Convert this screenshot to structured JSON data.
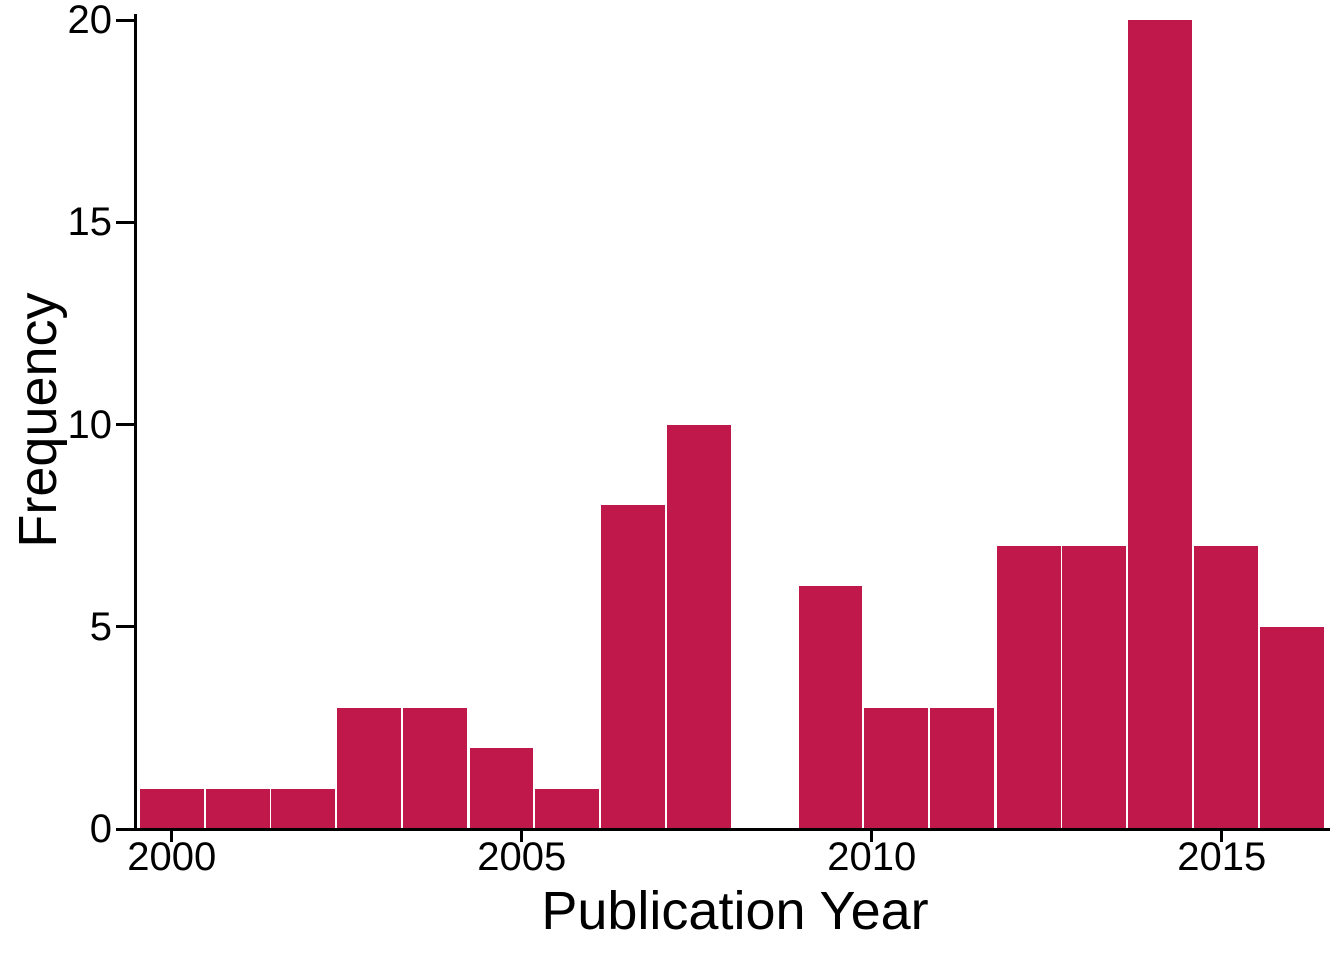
{
  "chart_data": {
    "type": "histogram",
    "title": "",
    "xlabel": "Publication Year",
    "ylabel": "Frequency",
    "x_tick_values": [
      2000,
      2005,
      2010,
      2015
    ],
    "y_tick_values": [
      0,
      5,
      10,
      15,
      20
    ],
    "xlim": [
      1999.5,
      2016.75
    ],
    "ylim": [
      0,
      20
    ],
    "grid": false,
    "legend": false,
    "background_color": "#FFFFFF",
    "axis_color": "#000000",
    "text_color": "#000000",
    "bar_fill_color": "#C1184C",
    "bar_stroke_color": "#FFFFFF",
    "bin_width_years": 0.9412,
    "total_count": 88,
    "bins": [
      {
        "x": 2000.0,
        "count": 1
      },
      {
        "x": 2000.94,
        "count": 1
      },
      {
        "x": 2001.88,
        "count": 1
      },
      {
        "x": 2002.82,
        "count": 3
      },
      {
        "x": 2003.76,
        "count": 3
      },
      {
        "x": 2004.71,
        "count": 2
      },
      {
        "x": 2005.65,
        "count": 1
      },
      {
        "x": 2006.59,
        "count": 8
      },
      {
        "x": 2007.53,
        "count": 10
      },
      {
        "x": 2008.47,
        "count": 0
      },
      {
        "x": 2009.41,
        "count": 6
      },
      {
        "x": 2010.35,
        "count": 3
      },
      {
        "x": 2011.29,
        "count": 3
      },
      {
        "x": 2012.24,
        "count": 7
      },
      {
        "x": 2013.18,
        "count": 7
      },
      {
        "x": 2014.12,
        "count": 20
      },
      {
        "x": 2015.06,
        "count": 7
      },
      {
        "x": 2016.0,
        "count": 5
      }
    ]
  }
}
